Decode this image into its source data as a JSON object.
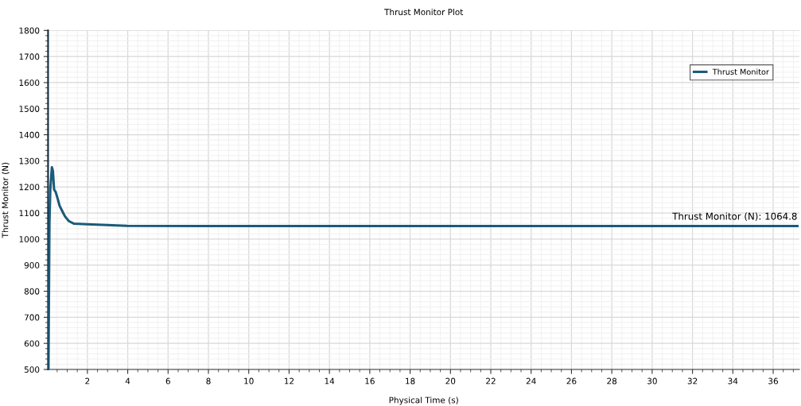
{
  "chart_data": {
    "type": "line",
    "title": "Thrust Monitor Plot",
    "xlabel": "Physical Time (s)",
    "ylabel": "Thrust Monitor (N)",
    "xlim": [
      0.05,
      37.3
    ],
    "ylim": [
      500,
      1800
    ],
    "xticks": [
      2,
      4,
      6,
      8,
      10,
      12,
      14,
      16,
      18,
      20,
      22,
      24,
      26,
      28,
      30,
      32,
      34,
      36
    ],
    "yticks": [
      500,
      600,
      700,
      800,
      900,
      1000,
      1100,
      1200,
      1300,
      1400,
      1500,
      1600,
      1700,
      1800
    ],
    "grid": true,
    "legend": "top right",
    "marker": "none",
    "line_style": "solid",
    "annotations": [
      "Thrust Monitor (N): 1064.8"
    ],
    "series": [
      {
        "name": "Thrust Monitor",
        "color": "#1a5a7a",
        "x": [
          0.07,
          0.1,
          0.12,
          0.16,
          0.24,
          0.29,
          0.35,
          0.43,
          0.53,
          0.62,
          0.75,
          0.89,
          1.08,
          1.34,
          2.0,
          3.97,
          8,
          12,
          16,
          20,
          24,
          28,
          32,
          37.2
        ],
        "values": [
          500,
          862,
          1067,
          1190,
          1275,
          1261,
          1190,
          1180,
          1154,
          1128,
          1108,
          1087,
          1069,
          1059,
          1057,
          1051,
          1050,
          1050,
          1050,
          1050,
          1050,
          1050,
          1050,
          1050
        ]
      }
    ]
  }
}
